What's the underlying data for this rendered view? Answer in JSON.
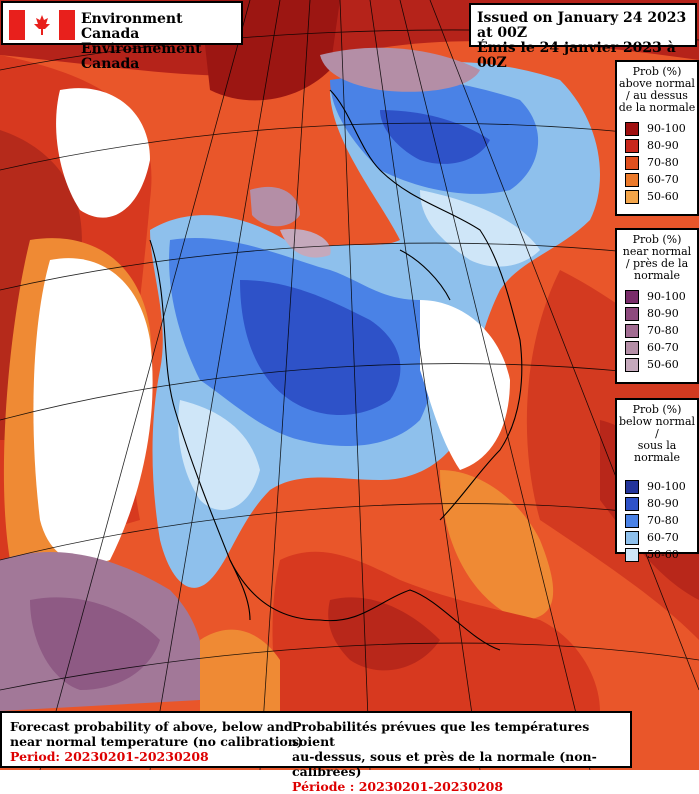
{
  "header": {
    "org_en": "Environment Canada",
    "org_fr": "Environnement Canada",
    "issued_en": "Issued on January 24 2023 at 00Z",
    "issued_fr": "Émis le 24 janvier 2023 à 00Z"
  },
  "legends": {
    "above": {
      "title": [
        "Prob (%)",
        "above normal",
        "/ au dessus",
        "de la normale"
      ],
      "rows": [
        {
          "label": "90-100",
          "color": "#a01010"
        },
        {
          "label": "80-90",
          "color": "#c8281c"
        },
        {
          "label": "70-80",
          "color": "#e0501e"
        },
        {
          "label": "60-70",
          "color": "#ec7a2a"
        },
        {
          "label": "50-60",
          "color": "#f3a54a"
        }
      ]
    },
    "near": {
      "title": [
        "Prob (%)",
        "near normal",
        "/ près de la",
        "normale"
      ],
      "rows": [
        {
          "label": "90-100",
          "color": "#7a2c6a"
        },
        {
          "label": "80-90",
          "color": "#8e4a7e"
        },
        {
          "label": "70-80",
          "color": "#a26c92"
        },
        {
          "label": "60-70",
          "color": "#b48ea6"
        },
        {
          "label": "50-60",
          "color": "#c5a9bc"
        }
      ]
    },
    "below": {
      "title": [
        "Prob (%)",
        "below normal /",
        "sous la normale"
      ],
      "rows": [
        {
          "label": "90-100",
          "color": "#23349a"
        },
        {
          "label": "80-90",
          "color": "#2e52c8"
        },
        {
          "label": "70-80",
          "color": "#4a82e6"
        },
        {
          "label": "60-70",
          "color": "#8ec0ec"
        },
        {
          "label": "50-60",
          "color": "#cfe6f8"
        }
      ]
    }
  },
  "footer": {
    "en_line1": "Forecast probability of above, below and",
    "en_line2": "near normal temperature (no calibration)",
    "en_period": "Period: 20230201-20230208",
    "fr_line1": "Probabilités prévues que les températures soient",
    "fr_line2": "au-dessus, sous et près de la normale (non-calibrées)",
    "fr_period": "Période : 20230201-20230208"
  },
  "colors": {
    "above_accent": "#c8281c",
    "near_accent": "#8e4a7e",
    "below_accent": "#2e52c8",
    "period_text": "#dd0000"
  }
}
